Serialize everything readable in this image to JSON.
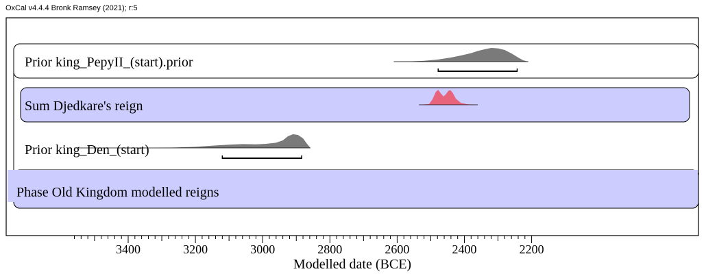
{
  "header": {
    "text": "OxCal v4.4.4 Bronk Ramsey (2021); r:5"
  },
  "colors": {
    "prior_fill": "#7a7a7a",
    "sum_fill": "#e8647c",
    "band_fill": "#ccccff",
    "frame": "#000000"
  },
  "chart_data": {
    "type": "area",
    "title": "",
    "xlabel": "Modelled date (BCE)",
    "ylabel": "",
    "xlim": [
      3560,
      2185
    ],
    "x_reversed": true,
    "x_ticks": [
      3400,
      3200,
      3000,
      2800,
      2600,
      2400,
      2200
    ],
    "x_minor_step": 20,
    "grid": false,
    "series": [
      {
        "name": "Prior king_PepyII_(start).prior",
        "kind": "prior",
        "box": "outline",
        "x": [
          2610,
          2560,
          2520,
          2480,
          2440,
          2410,
          2380,
          2360,
          2340,
          2320,
          2300,
          2280,
          2260,
          2240,
          2225,
          2210
        ],
        "y": [
          0.0,
          0.02,
          0.06,
          0.15,
          0.3,
          0.45,
          0.62,
          0.78,
          0.9,
          1.0,
          0.97,
          0.85,
          0.6,
          0.3,
          0.1,
          0.0
        ],
        "range_95": [
          2478,
          2243
        ]
      },
      {
        "name": "Sum Djedkare's reign",
        "kind": "sum",
        "box": "filled",
        "x": [
          2535,
          2505,
          2495,
          2485,
          2478,
          2470,
          2462,
          2455,
          2448,
          2442,
          2435,
          2425,
          2410,
          2390,
          2360
        ],
        "y": [
          0.0,
          0.05,
          0.35,
          0.85,
          1.0,
          0.75,
          0.55,
          0.7,
          0.92,
          0.98,
          0.8,
          0.4,
          0.12,
          0.03,
          0.0
        ],
        "range_95": null
      },
      {
        "name": "Prior king_Den_(start)",
        "kind": "prior",
        "box": "none",
        "x": [
          3560,
          3320,
          3260,
          3200,
          3140,
          3100,
          3060,
          3020,
          2990,
          2960,
          2940,
          2925,
          2910,
          2895,
          2880,
          2868,
          2858
        ],
        "y": [
          0.0,
          0.0,
          0.03,
          0.08,
          0.18,
          0.24,
          0.28,
          0.26,
          0.3,
          0.38,
          0.55,
          0.85,
          1.0,
          0.95,
          0.7,
          0.3,
          0.0
        ],
        "range_95": [
          3120,
          2884
        ]
      },
      {
        "name": "Phase Old Kingdom modelled reigns",
        "kind": "phase",
        "box": "filled",
        "x": [],
        "y": [],
        "range_95": null
      }
    ]
  }
}
